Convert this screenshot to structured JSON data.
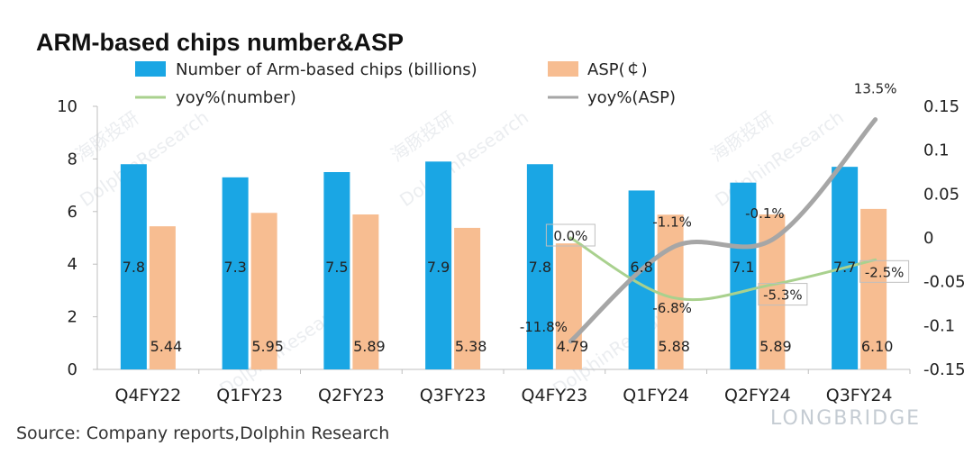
{
  "chart_data": {
    "type": "bar",
    "title": "ARM-based  chips number&ASP",
    "categories": [
      "Q4FY22",
      "Q1FY23",
      "Q2FY23",
      "Q3FY23",
      "Q4FY23",
      "Q1FY24",
      "Q2FY24",
      "Q3FY24"
    ],
    "series": [
      {
        "name": "Number of Arm-based chips (billions)",
        "type": "bar",
        "axis": "left",
        "color": "#1aa6e4",
        "values": [
          7.8,
          7.3,
          7.5,
          7.9,
          7.8,
          6.8,
          7.1,
          7.7
        ],
        "labels": [
          "7.8",
          "7.3",
          "7.5",
          "7.9",
          "7.8",
          "6.8",
          "7.1",
          "7.7"
        ]
      },
      {
        "name": "ASP(￠)",
        "type": "bar",
        "axis": "left",
        "color": "#f7bd91",
        "values": [
          5.44,
          5.95,
          5.89,
          5.38,
          4.79,
          5.88,
          5.89,
          6.1
        ],
        "labels": [
          "5.44",
          "5.95",
          "5.89",
          "5.38",
          "4.79",
          "5.88",
          "5.89",
          "6.10"
        ]
      },
      {
        "name": "yoy%(number)",
        "type": "line",
        "axis": "right",
        "color": "#a9d18e",
        "values": [
          null,
          null,
          null,
          null,
          0.0,
          -0.068,
          -0.053,
          -0.025
        ],
        "labels": [
          "",
          "",
          "",
          "",
          "0.0%",
          "-6.8%",
          "-5.3%",
          "-2.5%"
        ]
      },
      {
        "name": "yoy%(ASP)",
        "type": "line",
        "axis": "right",
        "color": "#a6a6a6",
        "values": [
          null,
          null,
          null,
          null,
          -0.118,
          -0.011,
          -0.001,
          0.135
        ],
        "labels": [
          "",
          "",
          "",
          "",
          "-11.8%",
          "-1.1%",
          "-0.1%",
          "13.5%"
        ]
      }
    ],
    "yleft": {
      "ylim": [
        0,
        10
      ],
      "ticks": [
        0,
        2,
        4,
        6,
        8,
        10
      ],
      "tick_labels": [
        "0",
        "2",
        "4",
        "6",
        "8",
        "10"
      ]
    },
    "yright": {
      "ylim": [
        -0.15,
        0.15
      ],
      "ticks": [
        -0.15,
        -0.1,
        -0.05,
        0,
        0.05,
        0.1,
        0.15
      ],
      "tick_labels": [
        "-0.15",
        "-0.1",
        "-0.05",
        "0",
        "0.05",
        "0.1",
        "0.15"
      ]
    },
    "legend": "top",
    "grid": false
  },
  "source": "Source: Company reports,Dolphin Research",
  "watermark": {
    "text": "DolphinResearch",
    "cn_text": "海豚投研",
    "brand": "LONGBRIDGE"
  }
}
